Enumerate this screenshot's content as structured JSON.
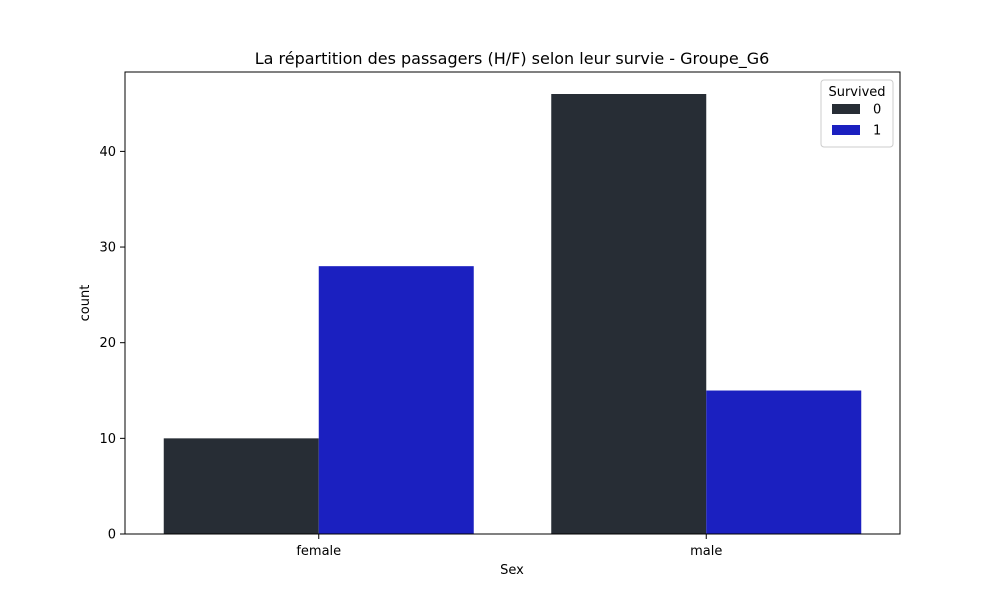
{
  "chart_data": {
    "type": "bar",
    "title": "La répartition des passagers (H/F) selon leur survie - Groupe_G6",
    "xlabel": "Sex",
    "ylabel": "count",
    "categories": [
      "female",
      "male"
    ],
    "series": [
      {
        "name": "0",
        "values": [
          10,
          46
        ],
        "color": "#272d35"
      },
      {
        "name": "1",
        "values": [
          28,
          15
        ],
        "color": "#1b20c0"
      }
    ],
    "yticks": [
      0,
      10,
      20,
      30,
      40
    ],
    "ylim": [
      0,
      48.3
    ],
    "grid": false,
    "legend": {
      "title": "Survived",
      "placement": "top-right"
    }
  }
}
